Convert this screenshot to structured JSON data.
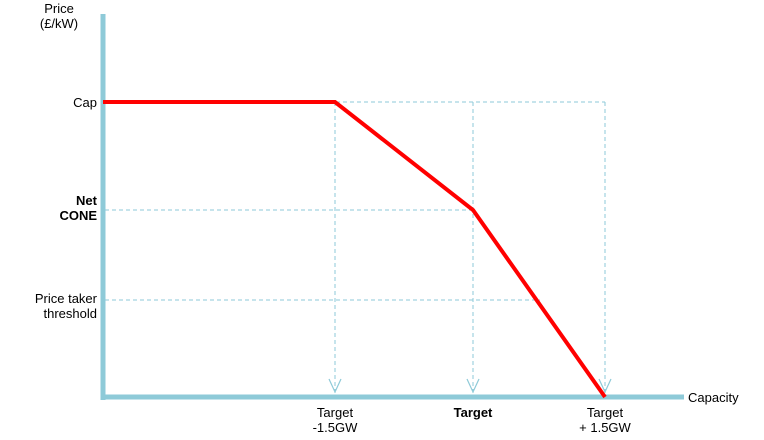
{
  "chart_data": {
    "type": "line",
    "title": "",
    "ylabel_lines": [
      "Price",
      "(£/kW)"
    ],
    "xlabel": "Capacity",
    "grid": false,
    "y_ticks": [
      {
        "key": "cap",
        "lines": [
          "Cap"
        ],
        "bold": false
      },
      {
        "key": "net_cone",
        "lines": [
          "Net",
          "CONE"
        ],
        "bold": true
      },
      {
        "key": "price_taker",
        "lines": [
          "Price taker",
          "threshold"
        ],
        "bold": false
      }
    ],
    "x_ticks": [
      {
        "key": "target_minus",
        "lines": [
          "Target",
          "-1.5GW"
        ],
        "bold": false
      },
      {
        "key": "target",
        "lines": [
          "Target"
        ],
        "bold": true
      },
      {
        "key": "target_plus",
        "lines": [
          "Target",
          "+ 1.5GW"
        ],
        "bold": false
      }
    ],
    "demand_curve": [
      {
        "x": "axis",
        "y": "cap"
      },
      {
        "x": "target_minus",
        "y": "cap"
      },
      {
        "x": "target",
        "y": "net_cone"
      },
      {
        "x": "target_plus",
        "y": "zero"
      }
    ],
    "guides": {
      "horizontal": [
        "cap",
        "net_cone",
        "price_taker"
      ],
      "vertical": [
        "target_minus",
        "target",
        "target_plus"
      ]
    },
    "colors": {
      "axis": "#8ecad8",
      "curve": "#ff0000",
      "guide": "#8ecad8",
      "text": "#000000"
    }
  }
}
